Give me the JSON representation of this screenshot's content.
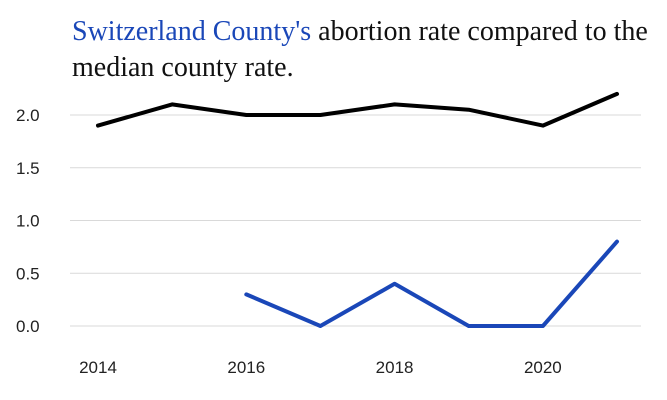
{
  "chart_data": {
    "type": "line",
    "title_highlight": "Switzerland County's",
    "title_rest": " abortion rate compared to the median county rate.",
    "x": [
      2014,
      2015,
      2016,
      2017,
      2018,
      2019,
      2020,
      2021
    ],
    "x_ticks": [
      2014,
      2016,
      2018,
      2020
    ],
    "y_ticks": [
      "0.0",
      "0.5",
      "1.0",
      "1.5",
      "2.0"
    ],
    "ylim": [
      0,
      2.0
    ],
    "grid": true,
    "series": [
      {
        "color": "#000000",
        "values": [
          1.9,
          2.1,
          2.0,
          2.0,
          2.1,
          2.05,
          1.9,
          2.2
        ]
      },
      {
        "color": "#1a47b8",
        "values": [
          null,
          null,
          0.3,
          0.0,
          0.4,
          0.0,
          0.0,
          0.8
        ]
      }
    ]
  }
}
